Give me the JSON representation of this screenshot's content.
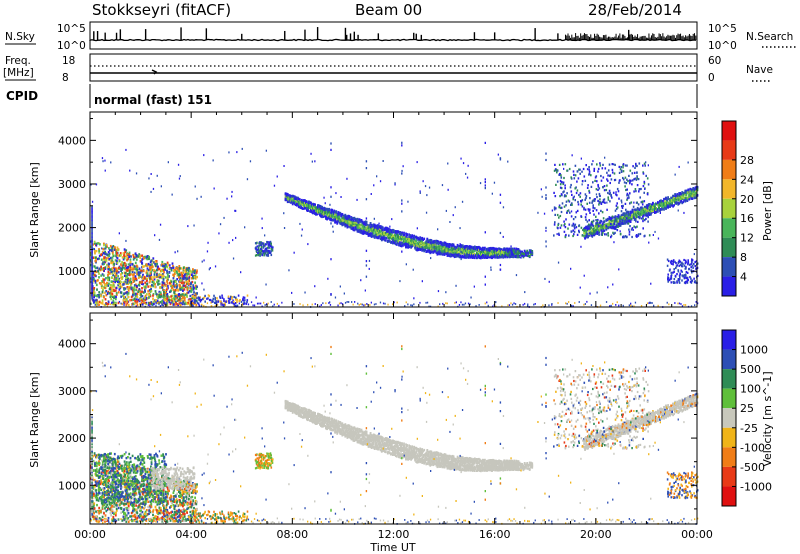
{
  "header": {
    "radar": "Stokkseyri (fitACF)",
    "beam": "Beam 00",
    "date": "28/Feb/2014"
  },
  "strip_labels": {
    "nsky": "N.Sky",
    "freq": "Freq.",
    "freq_unit": "[MHz]",
    "cpid": "CPID",
    "nsearch": "N.Search",
    "nave": "Nave",
    "nsky_ticks": [
      "10^5",
      "10^0"
    ],
    "nsearch_ticks": [
      "10^5",
      "10^0"
    ],
    "freq_ticks": [
      "18",
      "8"
    ],
    "nave_ticks": [
      "60",
      "0"
    ],
    "cpid_text": "normal (fast) 151"
  },
  "colors": {
    "power_scale": [
      "#2a1fe6",
      "#2d4fb5",
      "#2f8c56",
      "#49b55a",
      "#a8d23c",
      "#f2b62a",
      "#f07d17",
      "#e83a17",
      "#e01010"
    ],
    "velocity_scale": [
      "#2a1fe6",
      "#2d4fb5",
      "#2f8c56",
      "#5fbf3a",
      "#c8c8bc",
      "#f0b418",
      "#f07d17",
      "#e83a17",
      "#e01010"
    ],
    "ground_scatter": "#c6c6bd"
  },
  "chart_data": [
    {
      "type": "heatmap",
      "title": "",
      "xlabel": "Time UT",
      "ylabel": "Slant Range [km]",
      "xlim": [
        "00:00",
        "24:00"
      ],
      "ylim": [
        180,
        4650
      ],
      "x_ticks": [
        "00:00",
        "04:00",
        "08:00",
        "12:00",
        "16:00",
        "20:00",
        "00:00"
      ],
      "y_ticks": [
        1000,
        2000,
        3000,
        4000
      ],
      "colorbar": {
        "label": "Power [dB]",
        "ticks": [
          "4",
          "8",
          "12",
          "16",
          "20",
          "24",
          "28"
        ]
      }
    },
    {
      "type": "heatmap",
      "title": "",
      "xlabel": "Time UT",
      "ylabel": "Slant Range [km]",
      "xlim": [
        "00:00",
        "24:00"
      ],
      "ylim": [
        180,
        4650
      ],
      "x_ticks": [
        "00:00",
        "04:00",
        "08:00",
        "12:00",
        "16:00",
        "20:00",
        "00:00"
      ],
      "y_ticks": [
        1000,
        2000,
        3000,
        4000
      ],
      "colorbar": {
        "label": "Velocity [m s^-1]",
        "ticks": [
          "1000",
          "500",
          "100",
          "25",
          "-25",
          "-100",
          "-500",
          "-1000"
        ]
      }
    }
  ]
}
